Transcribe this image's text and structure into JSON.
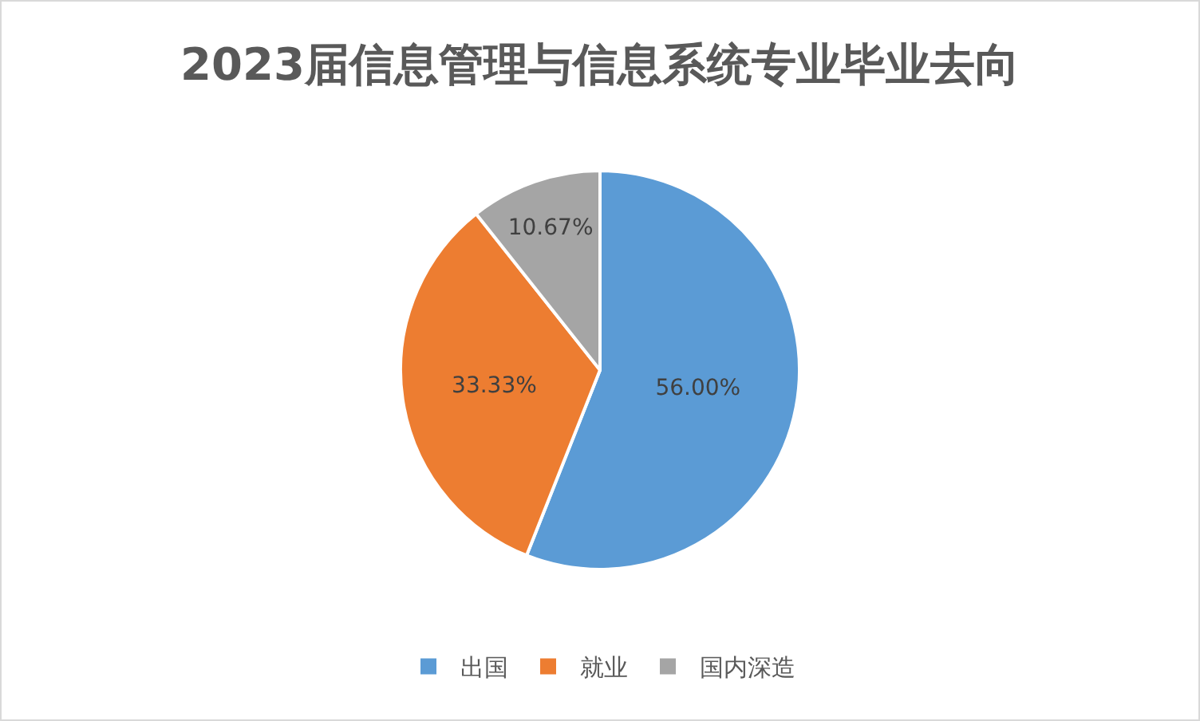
{
  "chart_data": {
    "type": "pie",
    "title": "2023届信息管理与信息系统专业毕业去向",
    "categories": [
      "出国",
      "就业",
      "国内深造"
    ],
    "values": [
      56.0,
      33.33,
      10.67
    ],
    "colors": [
      "#5b9bd5",
      "#ed7d31",
      "#a5a5a5"
    ],
    "value_labels": [
      "56.00%",
      "33.33%",
      "10.67%"
    ],
    "legend": "bottom"
  }
}
